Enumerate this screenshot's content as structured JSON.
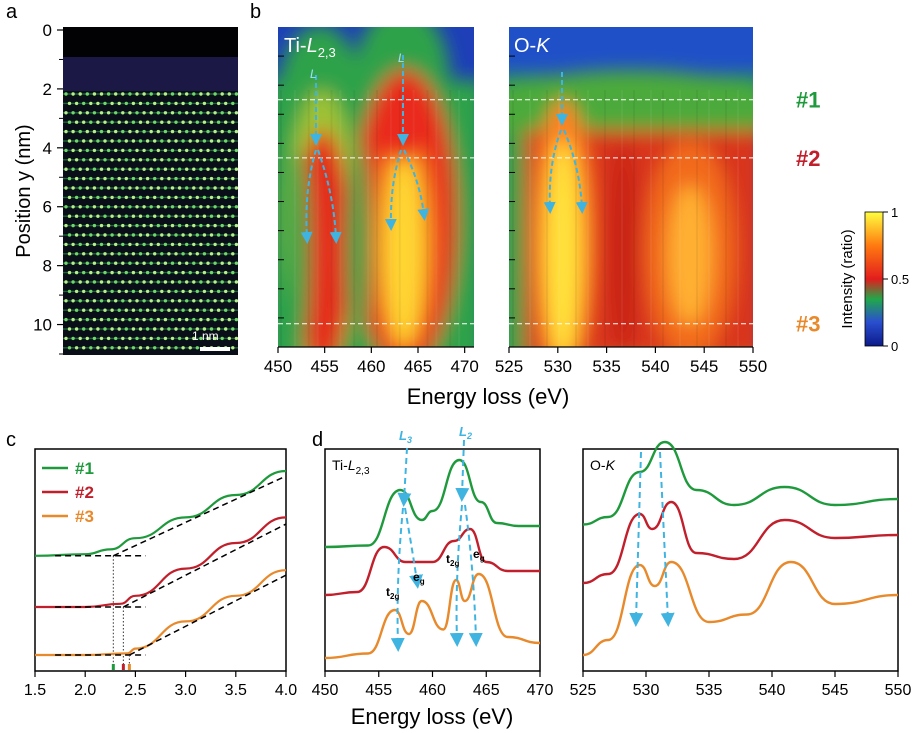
{
  "panels": {
    "a": "a",
    "b": "b",
    "c": "c",
    "d": "d"
  },
  "colors": {
    "s1": "#1e9a3c",
    "s2": "#c01f2b",
    "s3": "#e8892b",
    "guide": "#3fb4e0"
  },
  "panel_a": {
    "ylabel": "Position y (nm)",
    "ticks": [
      "0",
      "2",
      "4",
      "6",
      "8",
      "10"
    ],
    "tick_values": [
      0,
      2,
      4,
      6,
      8,
      10
    ],
    "y_range": [
      0,
      11
    ],
    "scalebar": "1 nm"
  },
  "panel_b": {
    "xlabel": "Energy loss (eV)",
    "ti_title_main": "Ti-",
    "ti_title_italic": "L",
    "ti_title_sub": "2,3",
    "ok_title_main": "O-",
    "ok_title_italic": "K",
    "ti_ticks": [
      "450",
      "455",
      "460",
      "465",
      "470"
    ],
    "ti_tick_values": [
      450,
      455,
      460,
      465,
      470
    ],
    "ti_range": [
      450,
      471
    ],
    "ok_ticks": [
      "525",
      "530",
      "535",
      "540",
      "545",
      "550"
    ],
    "ok_tick_values": [
      525,
      530,
      535,
      540,
      545,
      550
    ],
    "ok_range": [
      525,
      550
    ],
    "markers": [
      {
        "label": "#1",
        "position_nm": 2.5,
        "color": "#1e9a3c"
      },
      {
        "label": "#2",
        "position_nm": 4.5,
        "color": "#c01f2b"
      },
      {
        "label": "#3",
        "position_nm": 10.2,
        "color": "#e8892b"
      }
    ],
    "colorbar": {
      "label": "Intensity (ratio)",
      "ticks": [
        "1",
        "0.5",
        "0"
      ],
      "tick_values": [
        1,
        0.5,
        0
      ]
    }
  },
  "panel_c": {
    "legend": [
      "#1",
      "#2",
      "#3"
    ],
    "xticks": [
      "1.5",
      "2.0",
      "2.5",
      "3.0",
      "3.5",
      "4.0"
    ],
    "tick_values": [
      1.5,
      2.0,
      2.5,
      3.0,
      3.5,
      4.0
    ],
    "x_range": [
      1.5,
      4.0
    ],
    "onsets_eV": [
      2.28,
      2.38,
      2.44
    ]
  },
  "panel_d": {
    "xlabel": "Energy loss (eV)",
    "ti_title_main": "Ti-",
    "ti_title_italic": "L",
    "ti_title_sub": "2,3",
    "ok_title_main": "O-",
    "ok_title_italic": "K",
    "l3_italic": "L",
    "l3_sub": "3",
    "l2_italic": "L",
    "l2_sub": "2",
    "t2g_main": "t",
    "t2g_sub": "2g",
    "eg_main": "e",
    "eg_sub": "g",
    "ti_ticks": [
      "450",
      "455",
      "460",
      "465",
      "470"
    ],
    "ti_tick_values": [
      450,
      455,
      460,
      465,
      470
    ],
    "ti_range": [
      450,
      470
    ],
    "ok_ticks": [
      "525",
      "530",
      "535",
      "540",
      "545",
      "550"
    ],
    "ok_tick_values": [
      525,
      530,
      535,
      540,
      545,
      550
    ],
    "ok_range": [
      525,
      550
    ]
  },
  "chart_data": [
    {
      "type": "heatmap",
      "title": "Ti-L2,3",
      "xlabel": "Energy loss (eV)",
      "ylabel": "Position y (nm)",
      "xlim": [
        450,
        471
      ],
      "ylim": [
        0,
        11
      ],
      "peaks_eV": [
        455,
        464
      ],
      "colorbar_range": [
        0,
        1
      ]
    },
    {
      "type": "heatmap",
      "title": "O-K",
      "xlabel": "Energy loss (eV)",
      "ylabel": "Position y (nm)",
      "xlim": [
        525,
        550
      ],
      "ylim": [
        0,
        11
      ],
      "peaks_eV": [
        529.5,
        531.5,
        542
      ],
      "colorbar_range": [
        0,
        1
      ]
    },
    {
      "type": "line",
      "title": "c",
      "xlim": [
        1.5,
        4.0
      ],
      "series": [
        {
          "name": "#1",
          "x": [
            1.5,
            2.0,
            2.25,
            2.5,
            3.0,
            3.5,
            4.0
          ],
          "y": [
            0.72,
            0.73,
            0.76,
            0.83,
            0.96,
            1.1,
            1.25
          ]
        },
        {
          "name": "#2",
          "x": [
            1.5,
            2.0,
            2.35,
            2.5,
            3.0,
            3.5,
            4.0
          ],
          "y": [
            0.4,
            0.4,
            0.42,
            0.47,
            0.64,
            0.8,
            0.96
          ]
        },
        {
          "name": "#3",
          "x": [
            1.5,
            2.0,
            2.42,
            2.5,
            3.0,
            3.5,
            4.0
          ],
          "y": [
            0.1,
            0.1,
            0.11,
            0.14,
            0.31,
            0.47,
            0.63
          ]
        }
      ]
    },
    {
      "type": "line",
      "title": "Ti-L2,3",
      "xlabel": "Energy loss (eV)",
      "xlim": [
        450,
        470
      ],
      "series": [
        {
          "name": "#1",
          "x": [
            450,
            454,
            457,
            459,
            460,
            462.5,
            464.5,
            466,
            468,
            470
          ],
          "y": [
            0.8,
            0.81,
            1.18,
            0.98,
            1.04,
            1.38,
            1.1,
            0.96,
            0.94,
            0.94
          ]
        },
        {
          "name": "#2",
          "x": [
            450,
            453,
            455.5,
            457.5,
            460,
            462,
            463.5,
            465,
            467,
            470
          ],
          "y": [
            0.48,
            0.5,
            0.8,
            0.7,
            0.7,
            0.84,
            0.92,
            0.7,
            0.64,
            0.64
          ]
        },
        {
          "name": "#3",
          "x": [
            450,
            454,
            456.5,
            457.8,
            459,
            461,
            462.2,
            463,
            464.3,
            467,
            470
          ],
          "y": [
            0.06,
            0.09,
            0.38,
            0.22,
            0.44,
            0.25,
            0.58,
            0.44,
            0.62,
            0.2,
            0.16
          ]
        }
      ]
    },
    {
      "type": "line",
      "title": "O-K",
      "xlabel": "Energy loss (eV)",
      "xlim": [
        525,
        550
      ],
      "series": [
        {
          "name": "#1",
          "x": [
            525,
            527,
            529.5,
            531.5,
            534,
            537,
            541,
            545,
            550
          ],
          "y": [
            0.95,
            1.0,
            1.3,
            1.5,
            1.18,
            1.08,
            1.2,
            1.08,
            1.12
          ]
        },
        {
          "name": "#2",
          "x": [
            525,
            527,
            529.5,
            530.5,
            532,
            534,
            537,
            541,
            545,
            550
          ],
          "y": [
            0.56,
            0.62,
            1.02,
            0.92,
            1.1,
            0.76,
            0.72,
            0.98,
            0.86,
            0.88
          ]
        },
        {
          "name": "#3",
          "x": [
            525,
            527,
            529.5,
            530.7,
            532,
            535,
            538,
            541.5,
            545,
            550
          ],
          "y": [
            0.08,
            0.18,
            0.68,
            0.54,
            0.7,
            0.3,
            0.35,
            0.7,
            0.42,
            0.48
          ]
        }
      ]
    }
  ]
}
